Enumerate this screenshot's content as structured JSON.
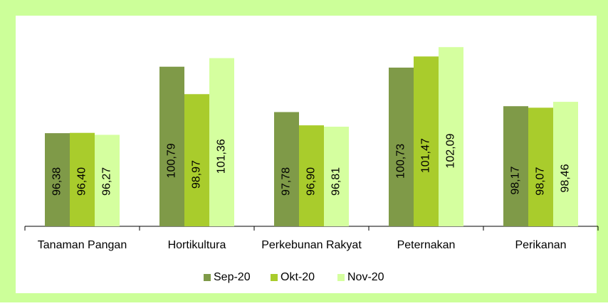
{
  "chart_data": {
    "type": "bar",
    "categories": [
      "Tanaman Pangan",
      "Hortikultura",
      "Perkebunan Rakyat",
      "Peternakan",
      "Perikanan"
    ],
    "series": [
      {
        "name": "Sep-20",
        "color": "#7f9a48",
        "values": [
          96.38,
          100.79,
          97.78,
          100.73,
          98.17
        ],
        "value_labels": [
          "96,38",
          "100,79",
          "97,78",
          "100,73",
          "98,17"
        ]
      },
      {
        "name": "Okt-20",
        "color": "#a9cc2c",
        "values": [
          96.4,
          98.97,
          96.9,
          101.47,
          98.07
        ],
        "value_labels": [
          "96,40",
          "98,97",
          "96,90",
          "101,47",
          "98,07"
        ]
      },
      {
        "name": "Nov-20",
        "color": "#d5ff9f",
        "values": [
          96.27,
          101.36,
          96.81,
          102.09,
          98.46
        ],
        "value_labels": [
          "96,27",
          "101,36",
          "96,81",
          "102,09",
          "98,46"
        ]
      }
    ],
    "ylim": [
      90.2,
      103.8
    ],
    "legend": "bottom"
  }
}
